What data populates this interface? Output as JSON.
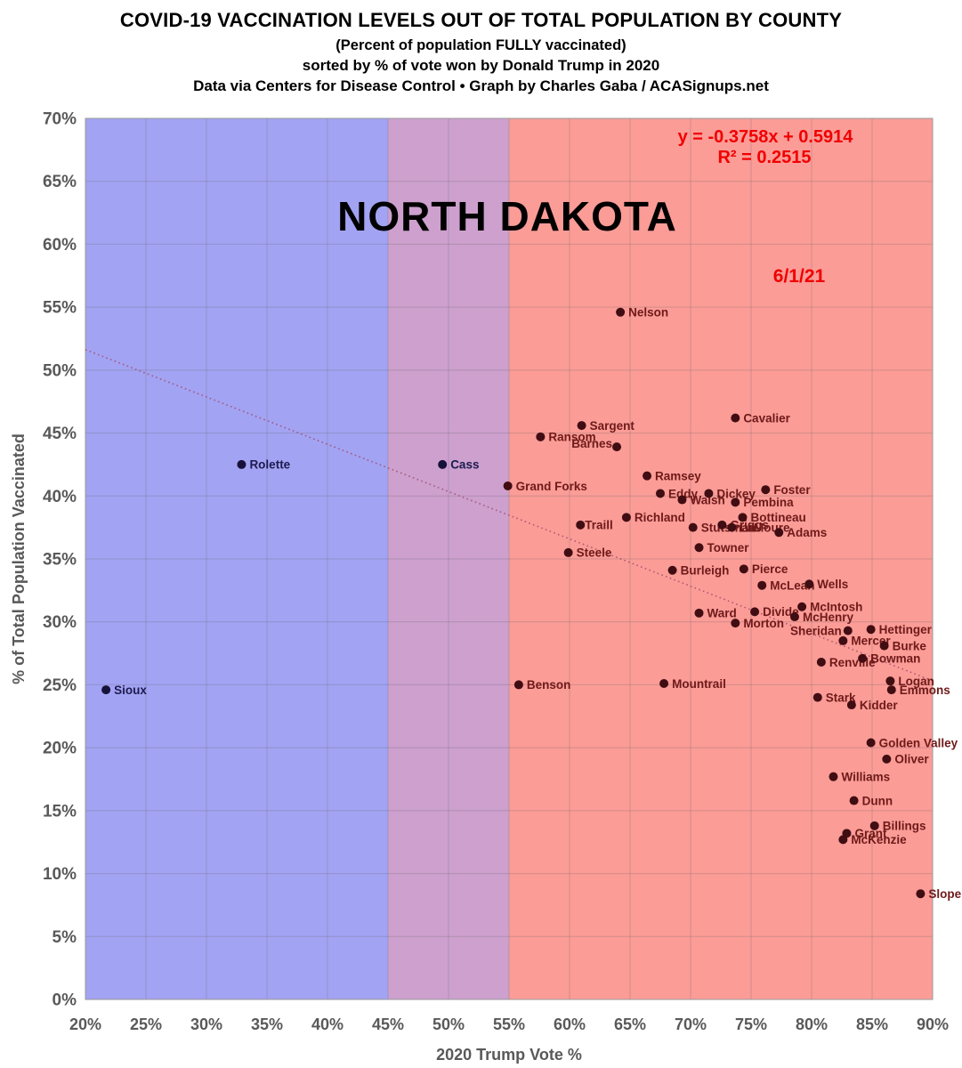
{
  "header": {
    "title": "COVID-19 VACCINATION LEVELS OUT OF TOTAL POPULATION BY COUNTY",
    "subtitle": "(Percent of population FULLY vaccinated)",
    "line3": "sorted by % of vote won by Donald Trump in 2020",
    "line4": "Data via Centers for Disease Control • Graph by Charles Gaba / ACASignups.net"
  },
  "chart_data": {
    "type": "scatter",
    "state_label": "NORTH DAKOTA",
    "date_label": "6/1/21",
    "regression_label": "y = -0.3758x + 0.5914",
    "r2_label": "R² = 0.2515",
    "regression": {
      "slope": -0.3758,
      "intercept": 0.5914
    },
    "xlabel": "2020 Trump Vote %",
    "ylabel": "% of Total Population Vaccinated",
    "xlim": [
      20,
      90
    ],
    "ylim": [
      0,
      70
    ],
    "x_ticks": [
      "20%",
      "25%",
      "30%",
      "35%",
      "40%",
      "45%",
      "50%",
      "55%",
      "60%",
      "65%",
      "70%",
      "75%",
      "80%",
      "85%",
      "90%"
    ],
    "y_ticks": [
      "0%",
      "5%",
      "10%",
      "15%",
      "20%",
      "25%",
      "30%",
      "35%",
      "40%",
      "45%",
      "50%",
      "55%",
      "60%",
      "65%",
      "70%"
    ],
    "grid": true,
    "bands": [
      {
        "name": "dem-lean",
        "from": 20,
        "to": 45,
        "color": "#a3a3f3"
      },
      {
        "name": "swing",
        "from": 45,
        "to": 55,
        "color": "#cda0ce"
      },
      {
        "name": "gop-lean",
        "from": 55,
        "to": 90,
        "color": "#fb9c97"
      }
    ],
    "points": [
      {
        "county": "Sioux",
        "trump": 21.7,
        "vax": 24.6,
        "side": "blue"
      },
      {
        "county": "Rolette",
        "trump": 32.9,
        "vax": 42.5,
        "side": "blue"
      },
      {
        "county": "Cass",
        "trump": 49.5,
        "vax": 42.5,
        "side": "blue"
      },
      {
        "county": "Grand Forks",
        "trump": 54.9,
        "vax": 40.8,
        "side": "red"
      },
      {
        "county": "Benson",
        "trump": 55.8,
        "vax": 25.0,
        "side": "red"
      },
      {
        "county": "Ransom",
        "trump": 57.6,
        "vax": 44.7,
        "side": "red"
      },
      {
        "county": "Steele",
        "trump": 59.9,
        "vax": 35.5,
        "side": "red"
      },
      {
        "county": "Traill",
        "trump": 60.9,
        "vax": 37.7,
        "side": "red",
        "dx": 5
      },
      {
        "county": "Sargent",
        "trump": 61.0,
        "vax": 45.6,
        "side": "red"
      },
      {
        "county": "Barnes",
        "trump": 63.9,
        "vax": 43.9,
        "side": "red",
        "anchor": "end",
        "dx": -5,
        "dy": -4
      },
      {
        "county": "Nelson",
        "trump": 64.2,
        "vax": 54.6,
        "side": "red"
      },
      {
        "county": "Richland",
        "trump": 64.7,
        "vax": 38.3,
        "side": "red"
      },
      {
        "county": "Ramsey",
        "trump": 66.4,
        "vax": 41.6,
        "side": "red"
      },
      {
        "county": "Eddy",
        "trump": 67.5,
        "vax": 40.2,
        "side": "red"
      },
      {
        "county": "Mountrail",
        "trump": 67.8,
        "vax": 25.1,
        "side": "red"
      },
      {
        "county": "Burleigh",
        "trump": 68.5,
        "vax": 34.1,
        "side": "red"
      },
      {
        "county": "Walsh",
        "trump": 69.3,
        "vax": 39.7,
        "side": "red"
      },
      {
        "county": "Stutsman",
        "trump": 70.2,
        "vax": 37.5,
        "side": "red"
      },
      {
        "county": "Towner",
        "trump": 70.7,
        "vax": 35.9,
        "side": "red"
      },
      {
        "county": "Ward",
        "trump": 70.7,
        "vax": 30.7,
        "side": "red"
      },
      {
        "county": "Dickey",
        "trump": 71.5,
        "vax": 40.2,
        "side": "red"
      },
      {
        "county": "Griggs",
        "trump": 72.6,
        "vax": 37.7,
        "side": "red"
      },
      {
        "county": "LaMoure",
        "trump": 73.4,
        "vax": 37.5,
        "side": "red"
      },
      {
        "county": "Pembina",
        "trump": 73.7,
        "vax": 39.5,
        "side": "red"
      },
      {
        "county": "Cavalier",
        "trump": 73.7,
        "vax": 46.2,
        "side": "red"
      },
      {
        "county": "Morton",
        "trump": 73.7,
        "vax": 29.9,
        "side": "red"
      },
      {
        "county": "Bottineau",
        "trump": 74.3,
        "vax": 38.3,
        "side": "red"
      },
      {
        "county": "Pierce",
        "trump": 74.4,
        "vax": 34.2,
        "side": "red"
      },
      {
        "county": "Divide",
        "trump": 75.3,
        "vax": 30.8,
        "side": "red"
      },
      {
        "county": "McLean",
        "trump": 75.9,
        "vax": 32.9,
        "side": "red"
      },
      {
        "county": "Foster",
        "trump": 76.2,
        "vax": 40.5,
        "side": "red"
      },
      {
        "county": "Adams",
        "trump": 77.3,
        "vax": 37.1,
        "side": "red"
      },
      {
        "county": "McHenry",
        "trump": 78.6,
        "vax": 30.4,
        "side": "red"
      },
      {
        "county": "McIntosh",
        "trump": 79.2,
        "vax": 31.2,
        "side": "red"
      },
      {
        "county": "Wells",
        "trump": 79.8,
        "vax": 33.0,
        "side": "red"
      },
      {
        "county": "Stark",
        "trump": 80.5,
        "vax": 24.0,
        "side": "red"
      },
      {
        "county": "Renville",
        "trump": 80.8,
        "vax": 26.8,
        "side": "red"
      },
      {
        "county": "Williams",
        "trump": 81.8,
        "vax": 17.7,
        "side": "red"
      },
      {
        "county": "Mercer",
        "trump": 82.6,
        "vax": 28.5,
        "side": "red"
      },
      {
        "county": "McKenzie",
        "trump": 82.6,
        "vax": 12.7,
        "side": "red"
      },
      {
        "county": "Grant",
        "trump": 82.9,
        "vax": 13.2,
        "side": "red"
      },
      {
        "county": "Sheridan",
        "trump": 83.0,
        "vax": 29.3,
        "side": "red",
        "anchor": "end",
        "dx": -7
      },
      {
        "county": "Kidder",
        "trump": 83.3,
        "vax": 23.4,
        "side": "red"
      },
      {
        "county": "Dunn",
        "trump": 83.5,
        "vax": 15.8,
        "side": "red"
      },
      {
        "county": "Bowman",
        "trump": 84.2,
        "vax": 27.1,
        "side": "red"
      },
      {
        "county": "Hettinger",
        "trump": 84.9,
        "vax": 29.4,
        "side": "red"
      },
      {
        "county": "Golden Valley",
        "trump": 84.9,
        "vax": 20.4,
        "side": "red"
      },
      {
        "county": "Billings",
        "trump": 85.2,
        "vax": 13.8,
        "side": "red"
      },
      {
        "county": "Burke",
        "trump": 86.0,
        "vax": 28.1,
        "side": "red"
      },
      {
        "county": "Oliver",
        "trump": 86.2,
        "vax": 19.1,
        "side": "red"
      },
      {
        "county": "Logan",
        "trump": 86.5,
        "vax": 25.3,
        "side": "red"
      },
      {
        "county": "Emmons",
        "trump": 86.6,
        "vax": 24.6,
        "side": "red"
      },
      {
        "county": "Slope",
        "trump": 89.0,
        "vax": 8.4,
        "side": "red"
      }
    ]
  },
  "colors": {
    "annotation_red": "#f00000",
    "dot_red": "#400d12",
    "dot_blue": "#16123a",
    "label_red": "#6e1a19",
    "label_blue": "#1d1b4f",
    "axis_text": "#595959",
    "grid": "rgba(90,90,90,0.25)",
    "plot_border": "#9a9a9a",
    "trendline": "#9c4a66"
  }
}
